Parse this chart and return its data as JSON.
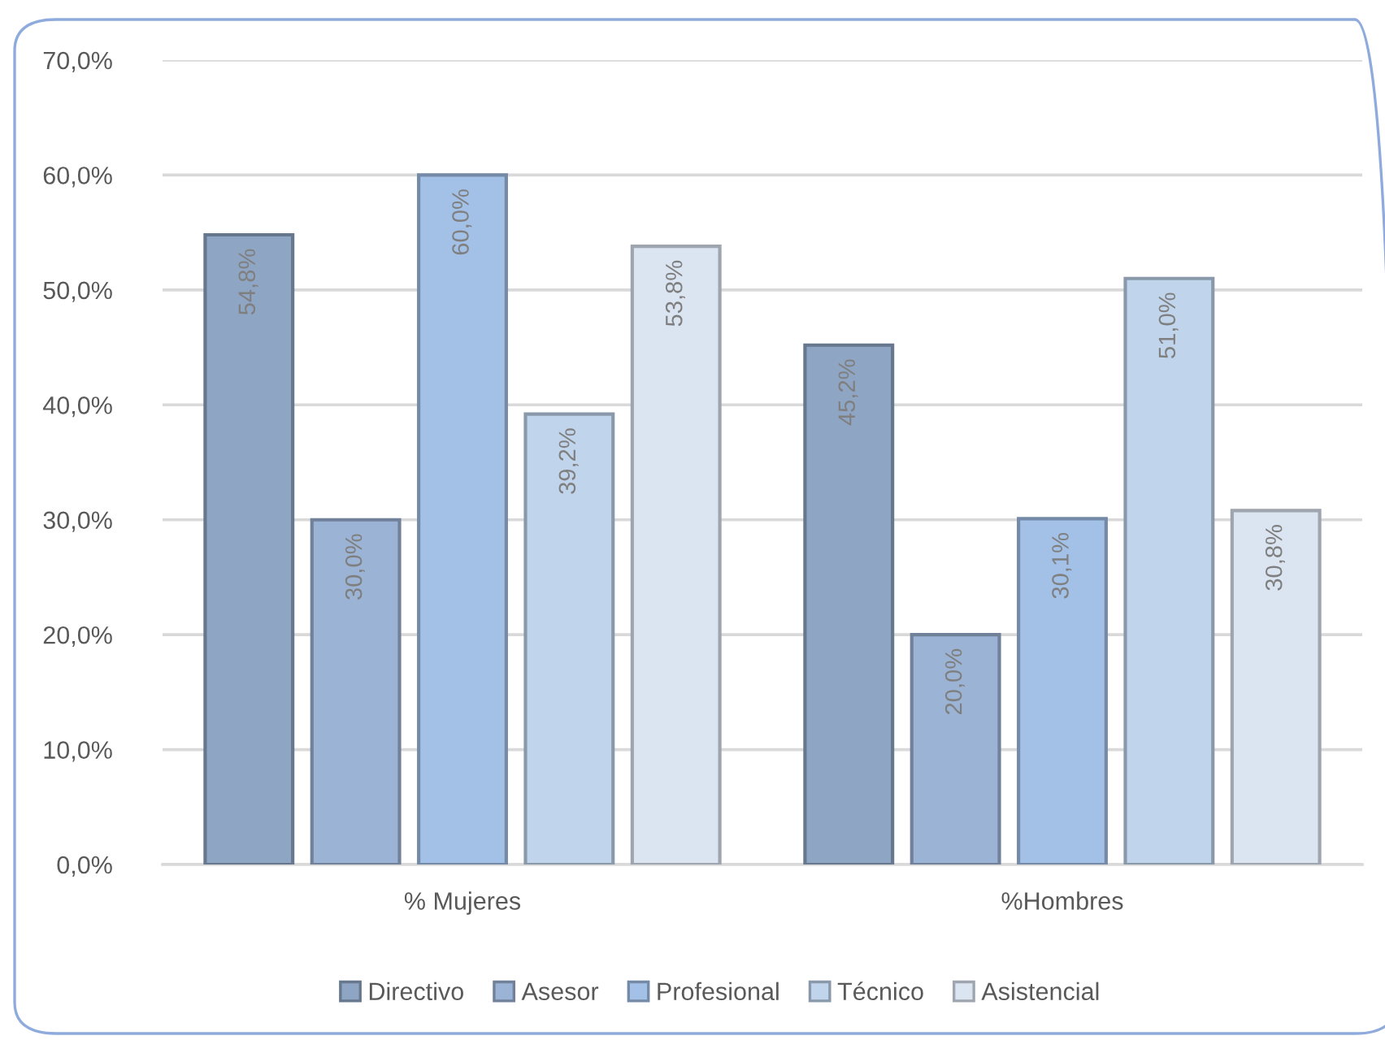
{
  "chart_data": {
    "type": "bar",
    "categories": [
      "% Mujeres",
      "%Hombres"
    ],
    "series": [
      {
        "name": "Directivo",
        "color": "#8fa5c4",
        "values": [
          54.8,
          45.2
        ],
        "value_labels": [
          "54,8%",
          "45,2%"
        ]
      },
      {
        "name": "Asesor",
        "color": "#9bb3d4",
        "values": [
          30.0,
          20.0
        ],
        "value_labels": [
          "30,0%",
          "20,0%"
        ]
      },
      {
        "name": "Profesional",
        "color": "#a3c0e6",
        "values": [
          60.0,
          30.1
        ],
        "value_labels": [
          "60,0%",
          "30,1%"
        ]
      },
      {
        "name": "Técnico",
        "color": "#c0d4ec",
        "values": [
          39.2,
          51.0
        ],
        "value_labels": [
          "39,2%",
          "51,0%"
        ]
      },
      {
        "name": "Asistencial",
        "color": "#dbe5f2",
        "values": [
          53.8,
          30.8
        ],
        "value_labels": [
          "53,8%",
          "30,8%"
        ]
      }
    ],
    "ylim": [
      0,
      70
    ],
    "yticks": [
      {
        "value": 0,
        "label": "0,0%"
      },
      {
        "value": 10,
        "label": "10,0%"
      },
      {
        "value": 20,
        "label": "20,0%"
      },
      {
        "value": 30,
        "label": "30,0%"
      },
      {
        "value": 40,
        "label": "40,0%"
      },
      {
        "value": 50,
        "label": "50,0%"
      },
      {
        "value": 60,
        "label": "60,0%"
      },
      {
        "value": 70,
        "label": "70,0%"
      }
    ],
    "grid": "y",
    "legend": "bottom"
  }
}
